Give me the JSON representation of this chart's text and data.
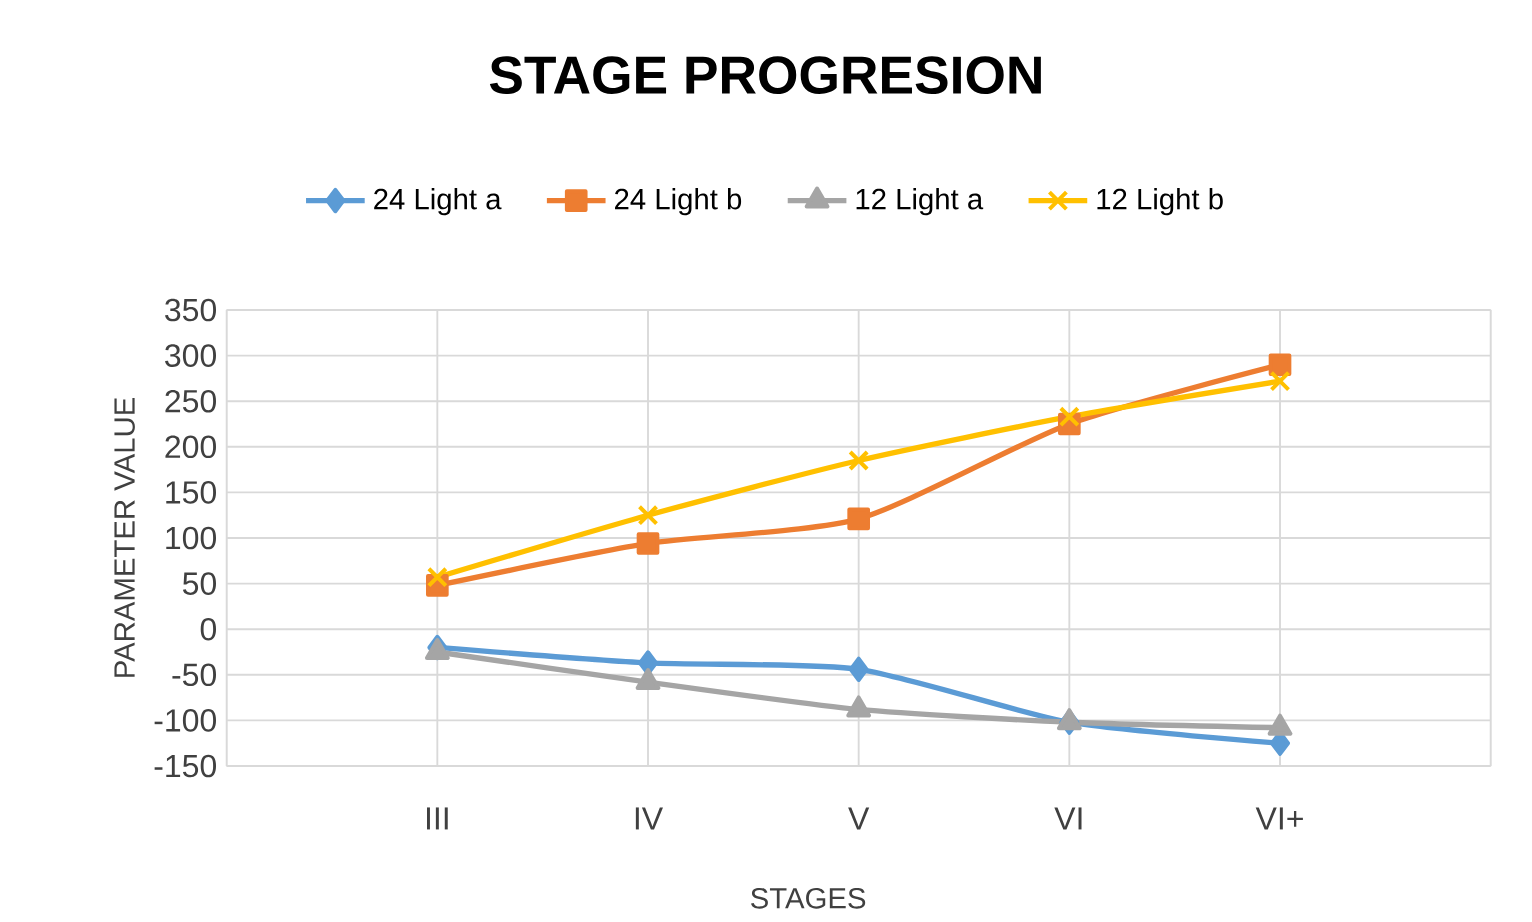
{
  "chart_data": {
    "type": "line",
    "title": "STAGE  PROGRESION",
    "xlabel": "STAGES",
    "ylabel": "PARAMETER VALUE",
    "categories": [
      null,
      "III",
      "IV",
      "V",
      "VI",
      "VI+",
      null
    ],
    "series": [
      {
        "name": "24 Light a",
        "color": "#5b9bd5",
        "marker": "diamond",
        "values": [
          null,
          -20,
          -37,
          -44,
          -102,
          -125,
          null
        ]
      },
      {
        "name": "24 Light b",
        "color": "#ed7d31",
        "marker": "square",
        "values": [
          null,
          48,
          94,
          121,
          225,
          290,
          null
        ]
      },
      {
        "name": "12 Light a",
        "color": "#a5a5a5",
        "marker": "triangle",
        "values": [
          null,
          -25,
          -58,
          -88,
          -102,
          -108,
          null
        ]
      },
      {
        "name": "12 Light b",
        "color": "#ffc000",
        "marker": "cross",
        "values": [
          null,
          57,
          125,
          185,
          233,
          272,
          null
        ]
      }
    ],
    "ylim": [
      -150,
      350
    ],
    "yticks": [
      -150,
      -100,
      -50,
      0,
      50,
      100,
      150,
      200,
      250,
      300,
      350
    ],
    "grid": true,
    "legend": "top",
    "line_style": "solid"
  }
}
